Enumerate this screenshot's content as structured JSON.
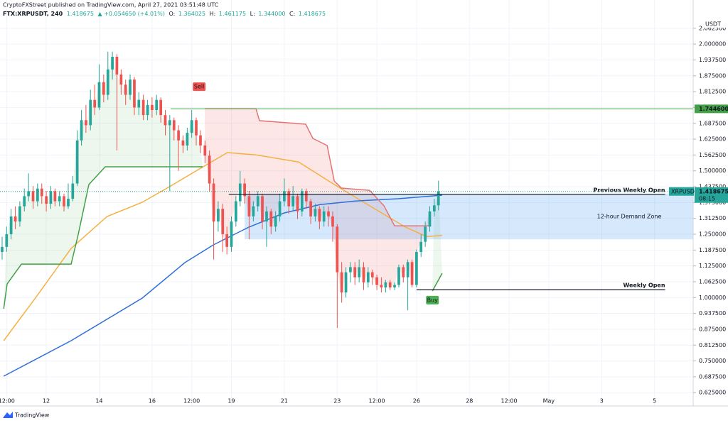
{
  "header": {
    "publisher": "CryptoFXStreet published on TradingView.com, April 27, 2021 03:51:48 UTC",
    "symbol": "FTX:XRPUSDT, 240",
    "last": "1.418675",
    "change": "▲ +0.054650 (+4.01%)",
    "ohlc": [
      {
        "key": "O:",
        "value": "1.364025"
      },
      {
        "key": "H:",
        "value": "1.461175"
      },
      {
        "key": "L:",
        "value": "1.344000"
      },
      {
        "key": "C:",
        "value": "1.418675"
      }
    ]
  },
  "footer": {
    "brand": "TradingView"
  },
  "chart_data": {
    "type": "candlestick",
    "y_unit": "USDT",
    "grid": true,
    "up_color": "#26a69a",
    "down_color": "#ef5350",
    "xlim": [
      10.25,
      36.46
    ],
    "ylim": [
      0.578,
      2.104
    ],
    "xticks": [
      {
        "value": 10.5,
        "label": "12:00"
      },
      12,
      14,
      16,
      {
        "value": 17.5,
        "label": "12:00"
      },
      19,
      21,
      23,
      {
        "value": 24.5,
        "label": "12:00"
      },
      26,
      28,
      {
        "value": 29.5,
        "label": "12:00"
      },
      {
        "value": 31,
        "label": "May"
      },
      {
        "value": 33,
        "label": "3"
      },
      {
        "value": 35,
        "label": "5"
      }
    ],
    "yticks": [
      {
        "value": 0.625,
        "label": "0.625000"
      },
      {
        "value": 0.6875,
        "label": "0.687500"
      },
      {
        "value": 0.75,
        "label": "0.750000"
      },
      {
        "value": 0.8125,
        "label": "0.812500"
      },
      {
        "value": 0.875,
        "label": "0.875000"
      },
      {
        "value": 0.9375,
        "label": "0.937500"
      },
      {
        "value": 1.0,
        "label": "1.000000"
      },
      {
        "value": 1.0625,
        "label": "1.062500"
      },
      {
        "value": 1.125,
        "label": "1.125000"
      },
      {
        "value": 1.1875,
        "label": "1.187500"
      },
      {
        "value": 1.25,
        "label": "1.250000"
      },
      {
        "value": 1.3125,
        "label": "1.312500"
      },
      {
        "value": 1.375,
        "label": "1.375000"
      },
      {
        "value": 1.4375,
        "label": "1.437500"
      },
      {
        "value": 1.5,
        "label": "1.500000"
      },
      {
        "value": 1.5625,
        "label": "1.562500"
      },
      {
        "value": 1.625,
        "label": "1.625000"
      },
      {
        "value": 1.6875,
        "label": "1.687500"
      },
      {
        "value": 1.75,
        "label": "1.750000"
      },
      {
        "value": 1.8125,
        "label": "1.812500"
      },
      {
        "value": 1.875,
        "label": "1.875000"
      },
      {
        "value": 1.9375,
        "label": "1.937500"
      },
      {
        "value": 2.0,
        "label": "2.000000"
      },
      {
        "value": 2.0625,
        "label": "2.062500"
      }
    ],
    "candles": {
      "x": [
        10.33,
        10.5,
        10.67,
        10.83,
        11,
        11.17,
        11.33,
        11.5,
        11.67,
        11.83,
        12,
        12.17,
        12.33,
        12.5,
        12.67,
        12.83,
        13,
        13.17,
        13.33,
        13.5,
        13.67,
        13.83,
        14,
        14.17,
        14.33,
        14.5,
        14.67,
        14.83,
        15,
        15.17,
        15.33,
        15.5,
        15.67,
        15.83,
        16,
        16.17,
        16.33,
        16.5,
        16.67,
        16.83,
        17,
        17.17,
        17.33,
        17.5,
        17.67,
        17.83,
        18,
        18.17,
        18.33,
        18.5,
        18.67,
        18.83,
        19,
        19.17,
        19.33,
        19.5,
        19.67,
        19.83,
        20,
        20.17,
        20.33,
        20.5,
        20.67,
        20.83,
        21,
        21.17,
        21.33,
        21.5,
        21.67,
        21.83,
        22,
        22.17,
        22.33,
        22.5,
        22.67,
        22.83,
        23,
        23.17,
        23.33,
        23.5,
        23.67,
        23.83,
        24,
        24.17,
        24.33,
        24.5,
        24.67,
        24.83,
        25,
        25.17,
        25.33,
        25.5,
        25.67,
        25.83,
        26,
        26.17,
        26.33,
        26.5,
        26.67,
        26.83
      ],
      "open": [
        1.18,
        1.2,
        1.25,
        1.32,
        1.3,
        1.36,
        1.4,
        1.42,
        1.38,
        1.43,
        1.4,
        1.37,
        1.42,
        1.38,
        1.4,
        1.36,
        1.39,
        1.45,
        1.62,
        1.7,
        1.68,
        1.78,
        1.75,
        1.85,
        1.8,
        1.9,
        1.95,
        1.88,
        1.84,
        1.8,
        1.86,
        1.75,
        1.78,
        1.72,
        1.76,
        1.74,
        1.78,
        1.72,
        1.68,
        1.7,
        1.66,
        1.62,
        1.6,
        1.65,
        1.7,
        1.64,
        1.6,
        1.56,
        1.45,
        1.3,
        1.35,
        1.25,
        1.2,
        1.3,
        1.38,
        1.45,
        1.4,
        1.32,
        1.36,
        1.4,
        1.3,
        1.34,
        1.28,
        1.32,
        1.38,
        1.42,
        1.36,
        1.4,
        1.34,
        1.42,
        1.38,
        1.32,
        1.35,
        1.3,
        1.34,
        1.32,
        1.28,
        1.1,
        1.02,
        1.1,
        1.12,
        1.08,
        1.12,
        1.06,
        1.1,
        1.08,
        1.05,
        1.04,
        1.06,
        1.04,
        1.05,
        1.12,
        1.08,
        1.14,
        1.05,
        1.18,
        1.22,
        1.28,
        1.34,
        1.364025
      ],
      "high": [
        1.24,
        1.28,
        1.35,
        1.36,
        1.38,
        1.43,
        1.49,
        1.44,
        1.45,
        1.45,
        1.42,
        1.44,
        1.43,
        1.42,
        1.41,
        1.45,
        1.48,
        1.66,
        1.74,
        1.76,
        1.82,
        1.84,
        1.92,
        1.88,
        1.97,
        1.97,
        1.96,
        1.9,
        1.86,
        1.88,
        1.87,
        1.81,
        1.8,
        1.78,
        1.79,
        1.8,
        1.79,
        1.74,
        1.72,
        1.71,
        1.68,
        1.64,
        1.67,
        1.74,
        1.71,
        1.66,
        1.62,
        1.58,
        1.47,
        1.38,
        1.37,
        1.28,
        1.32,
        1.4,
        1.5,
        1.47,
        1.42,
        1.38,
        1.42,
        1.41,
        1.36,
        1.35,
        1.34,
        1.41,
        1.47,
        1.43,
        1.44,
        1.41,
        1.43,
        1.43,
        1.39,
        1.37,
        1.36,
        1.36,
        1.36,
        1.34,
        1.29,
        1.14,
        1.12,
        1.14,
        1.14,
        1.15,
        1.14,
        1.12,
        1.11,
        1.09,
        1.08,
        1.07,
        1.07,
        1.06,
        1.13,
        1.13,
        1.15,
        1.15,
        1.19,
        1.25,
        1.3,
        1.36,
        1.39,
        1.461175
      ],
      "low": [
        1.15,
        1.18,
        1.23,
        1.27,
        1.28,
        1.34,
        1.38,
        1.35,
        1.36,
        1.37,
        1.34,
        1.35,
        1.36,
        1.36,
        1.34,
        1.35,
        1.38,
        1.44,
        1.6,
        1.65,
        1.66,
        1.72,
        1.74,
        1.77,
        1.78,
        1.86,
        1.58,
        1.8,
        1.76,
        1.78,
        1.72,
        1.72,
        1.7,
        1.7,
        1.71,
        1.72,
        1.69,
        1.64,
        1.42,
        1.62,
        1.5,
        1.57,
        1.58,
        1.63,
        1.6,
        1.57,
        1.53,
        1.42,
        1.15,
        1.26,
        1.18,
        1.17,
        1.18,
        1.28,
        1.36,
        1.37,
        1.23,
        1.3,
        1.34,
        1.27,
        1.2,
        1.25,
        1.26,
        1.3,
        1.36,
        1.33,
        1.34,
        1.31,
        1.32,
        1.35,
        1.29,
        1.3,
        1.27,
        1.28,
        1.28,
        1.22,
        0.88,
        0.98,
        1.0,
        1.06,
        1.05,
        1.06,
        1.03,
        1.04,
        1.05,
        1.03,
        1.02,
        1.02,
        1.03,
        1.03,
        1.04,
        1.06,
        0.95,
        1.04,
        1.04,
        1.16,
        1.2,
        1.26,
        1.32,
        1.344
      ],
      "close": [
        1.2,
        1.25,
        1.32,
        1.3,
        1.36,
        1.4,
        1.42,
        1.38,
        1.43,
        1.4,
        1.37,
        1.42,
        1.38,
        1.4,
        1.36,
        1.39,
        1.45,
        1.62,
        1.7,
        1.68,
        1.78,
        1.75,
        1.85,
        1.8,
        1.9,
        1.95,
        1.88,
        1.84,
        1.8,
        1.86,
        1.75,
        1.78,
        1.72,
        1.76,
        1.74,
        1.78,
        1.72,
        1.68,
        1.7,
        1.66,
        1.62,
        1.6,
        1.65,
        1.7,
        1.64,
        1.6,
        1.56,
        1.45,
        1.3,
        1.35,
        1.25,
        1.2,
        1.3,
        1.38,
        1.45,
        1.4,
        1.32,
        1.36,
        1.4,
        1.3,
        1.34,
        1.28,
        1.32,
        1.38,
        1.42,
        1.36,
        1.4,
        1.34,
        1.42,
        1.38,
        1.32,
        1.35,
        1.3,
        1.34,
        1.32,
        1.28,
        1.1,
        1.02,
        1.1,
        1.12,
        1.08,
        1.12,
        1.06,
        1.1,
        1.08,
        1.05,
        1.04,
        1.06,
        1.04,
        1.05,
        1.12,
        1.08,
        1.14,
        1.05,
        1.18,
        1.22,
        1.28,
        1.34,
        1.364025,
        1.418675
      ]
    },
    "lines": [
      {
        "color": "#f5b041",
        "x": [
          10.39,
          11.6,
          12.94,
          14.3,
          15.63,
          16.7,
          17.78,
          18.85,
          19.93,
          21.54,
          22.89,
          24.23,
          25.58,
          26.38,
          26.97
        ],
        "values": [
          0.83,
          1.0,
          1.194,
          1.32,
          1.376,
          1.44,
          1.507,
          1.572,
          1.563,
          1.535,
          1.446,
          1.362,
          1.278,
          1.241,
          1.245
        ]
      },
      {
        "color": "#2e6fd8",
        "x": [
          10.39,
          12.94,
          15.63,
          17.24,
          18.32,
          19.66,
          21.0,
          22.35,
          23.69,
          25.31,
          26.97
        ],
        "values": [
          0.69,
          0.83,
          0.998,
          1.138,
          1.208,
          1.278,
          1.334,
          1.367,
          1.381,
          1.39,
          1.404
        ]
      },
      {
        "color": "#43a047",
        "fill": "rgba(76,175,80,0.10)",
        "x": [
          10.39,
          10.52,
          11.06,
          12.94,
          13.21,
          13.61,
          14.23,
          17.91
        ],
        "values": [
          0.956,
          1.054,
          1.132,
          1.132,
          1.25,
          1.446,
          1.516,
          1.516
        ]
      },
      {
        "color": "#e57373",
        "fill": "rgba(239,83,80,0.14)",
        "x": [
          17.99,
          19.93,
          20.06,
          21.81,
          22.08,
          22.62,
          22.89,
          23.16,
          24.23,
          24.77,
          25.17,
          26.52
        ],
        "values": [
          1.745,
          1.745,
          1.698,
          1.684,
          1.628,
          1.6,
          1.46,
          1.432,
          1.423,
          1.362,
          1.283,
          1.283
        ]
      },
      {
        "color": "#43a047",
        "fill": "rgba(76,175,80,0.10)",
        "x": [
          26.6,
          26.97
        ],
        "values": [
          1.026,
          1.096
        ]
      }
    ],
    "zone": {
      "label": "12-hour Demand Zone",
      "low": 1.23,
      "high": 1.41,
      "from": 19.5,
      "color": "rgba(66,150,243,0.22)"
    },
    "hlines": [
      {
        "label": "Previous Weekly Open",
        "value": 1.407,
        "from": 18.9,
        "to": 35.4
      },
      {
        "label": "Weekly Open",
        "value": 1.031,
        "from": 26.0,
        "to": 35.4
      }
    ],
    "level": {
      "value": 1.7446,
      "label": "1.744600",
      "from": 16.7,
      "color": "#43a047"
    },
    "markers": [
      {
        "text": "Sell",
        "x": 17.78,
        "y": 1.832,
        "color": "#ef5350"
      },
      {
        "text": "Buy",
        "x": 26.6,
        "y": 0.99,
        "color": "#4caf50"
      }
    ],
    "last_price": {
      "symbol": "XRPUSDT",
      "value": 1.418675,
      "label": "1.418675",
      "countdown": "08:15",
      "color": "#26a69a"
    }
  }
}
